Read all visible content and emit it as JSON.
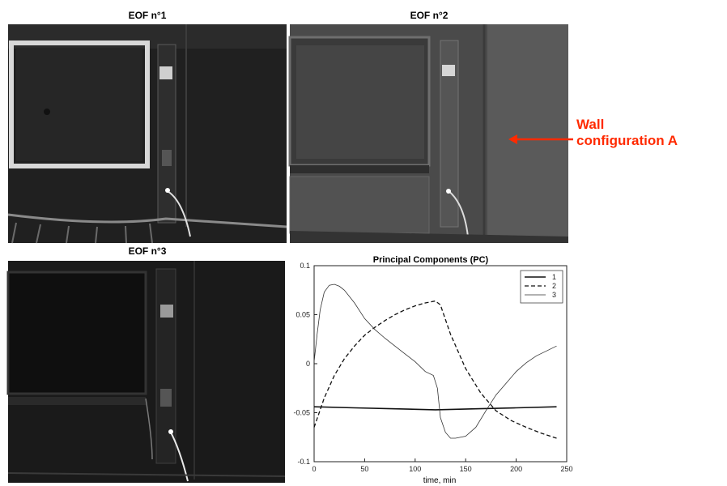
{
  "panels": {
    "eof1_title": "EOF n°1",
    "eof2_title": "EOF n°2",
    "eof3_title": "EOF n°3"
  },
  "annotation": {
    "line1": "Wall",
    "line2": "configuration A",
    "color": "#ff2a00"
  },
  "chart_data": {
    "type": "line",
    "title": "Principal Components (PC)",
    "xlabel": "time, min",
    "ylabel": "",
    "xlim": [
      0,
      250
    ],
    "ylim": [
      -0.1,
      0.1
    ],
    "xticks": [
      "0",
      "50",
      "100",
      "150",
      "200",
      "250"
    ],
    "yticks": [
      "0.1",
      "0.05",
      "0",
      "-0.05",
      "-0.1"
    ],
    "legend_placement": "top-right",
    "series": [
      {
        "name": "1",
        "style": "solid",
        "x": [
          0,
          40,
          80,
          120,
          160,
          200,
          240
        ],
        "y": [
          -0.044,
          -0.045,
          -0.046,
          -0.047,
          -0.046,
          -0.045,
          -0.044
        ]
      },
      {
        "name": "2",
        "style": "dashed",
        "x": [
          0,
          10,
          20,
          30,
          40,
          50,
          60,
          70,
          80,
          90,
          100,
          110,
          120,
          125,
          135,
          150,
          165,
          180,
          195,
          210,
          225,
          240
        ],
        "y": [
          -0.065,
          -0.035,
          -0.012,
          0.005,
          0.018,
          0.029,
          0.037,
          0.044,
          0.05,
          0.055,
          0.059,
          0.062,
          0.064,
          0.06,
          0.03,
          -0.005,
          -0.03,
          -0.048,
          -0.058,
          -0.065,
          -0.071,
          -0.076
        ]
      },
      {
        "name": "3",
        "style": "thin",
        "x": [
          0,
          3,
          6,
          10,
          15,
          20,
          25,
          30,
          40,
          50,
          60,
          70,
          80,
          90,
          100,
          110,
          118,
          122,
          125,
          130,
          135,
          140,
          150,
          160,
          170,
          180,
          190,
          200,
          210,
          220,
          230,
          240
        ],
        "y": [
          0.002,
          0.03,
          0.055,
          0.073,
          0.08,
          0.081,
          0.079,
          0.075,
          0.062,
          0.046,
          0.035,
          0.026,
          0.018,
          0.01,
          0.002,
          -0.008,
          -0.012,
          -0.025,
          -0.055,
          -0.07,
          -0.076,
          -0.076,
          -0.074,
          -0.065,
          -0.048,
          -0.032,
          -0.02,
          -0.008,
          0.001,
          0.008,
          0.013,
          0.018
        ]
      }
    ]
  }
}
